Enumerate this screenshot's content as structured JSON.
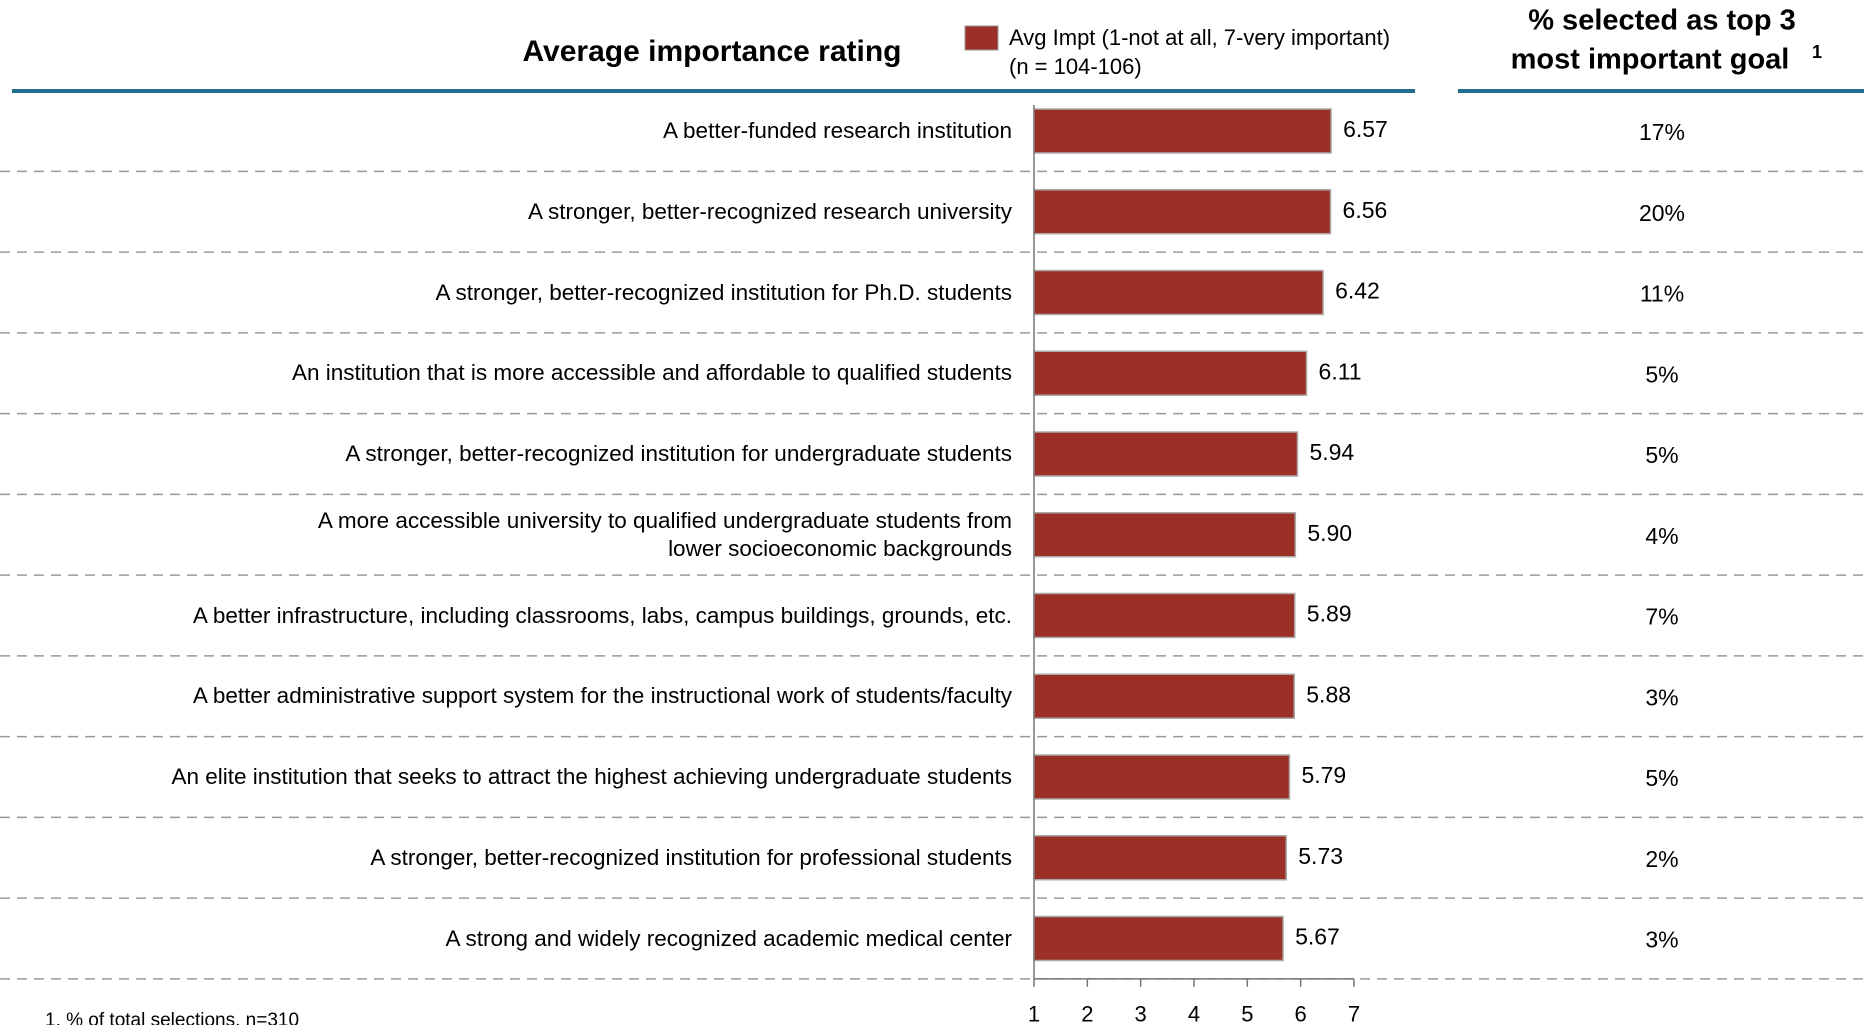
{
  "chart_data": {
    "type": "barh",
    "title": "Average importance rating",
    "series": [
      {
        "name": "Avg Impt (1-not at all, 7-very important)",
        "color": "#9b3027",
        "values": [
          6.57,
          6.56,
          6.42,
          6.11,
          5.94,
          5.9,
          5.89,
          5.88,
          5.79,
          5.73,
          5.67
        ],
        "value_labels": [
          "6.57",
          "6.56",
          "6.42",
          "6.11",
          "5.94",
          "5.90",
          "5.89",
          "5.88",
          "5.79",
          "5.73",
          "5.67"
        ]
      }
    ],
    "legend_note": "(n  = 104-106)",
    "categories": [
      "A better-funded research institution",
      "A stronger, better-recognized research university",
      "A stronger, better-recognized institution for Ph.D. students",
      "An institution that is more accessible and affordable to qualified students",
      "A stronger, better-recognized institution for undergraduate students",
      "A more accessible university to qualified undergraduate students from\nlower socioeconomic backgrounds",
      "A better infrastructure, including classrooms, labs, campus buildings, grounds, etc.",
      "A better administrative support system for the instructional work of students/faculty",
      "An elite institution that seeks to attract the highest achieving undergraduate students",
      "A stronger, better-recognized institution for professional students",
      "A strong and widely recognized academic medical center"
    ],
    "xlim": [
      1,
      7
    ],
    "xticks": [
      1,
      2,
      3,
      4,
      5,
      6,
      7
    ],
    "top3": {
      "title_lines": [
        "% selected as top 3",
        "most important goal"
      ],
      "title_marker": "1",
      "values": [
        17,
        20,
        11,
        5,
        5,
        4,
        7,
        3,
        5,
        2,
        3
      ],
      "value_labels": [
        "17%",
        "20%",
        "11%",
        "5%",
        "5%",
        "4%",
        "7%",
        "3%",
        "5%",
        "2%",
        "3%"
      ]
    },
    "footnote": "1. % of total selections, n=310"
  }
}
